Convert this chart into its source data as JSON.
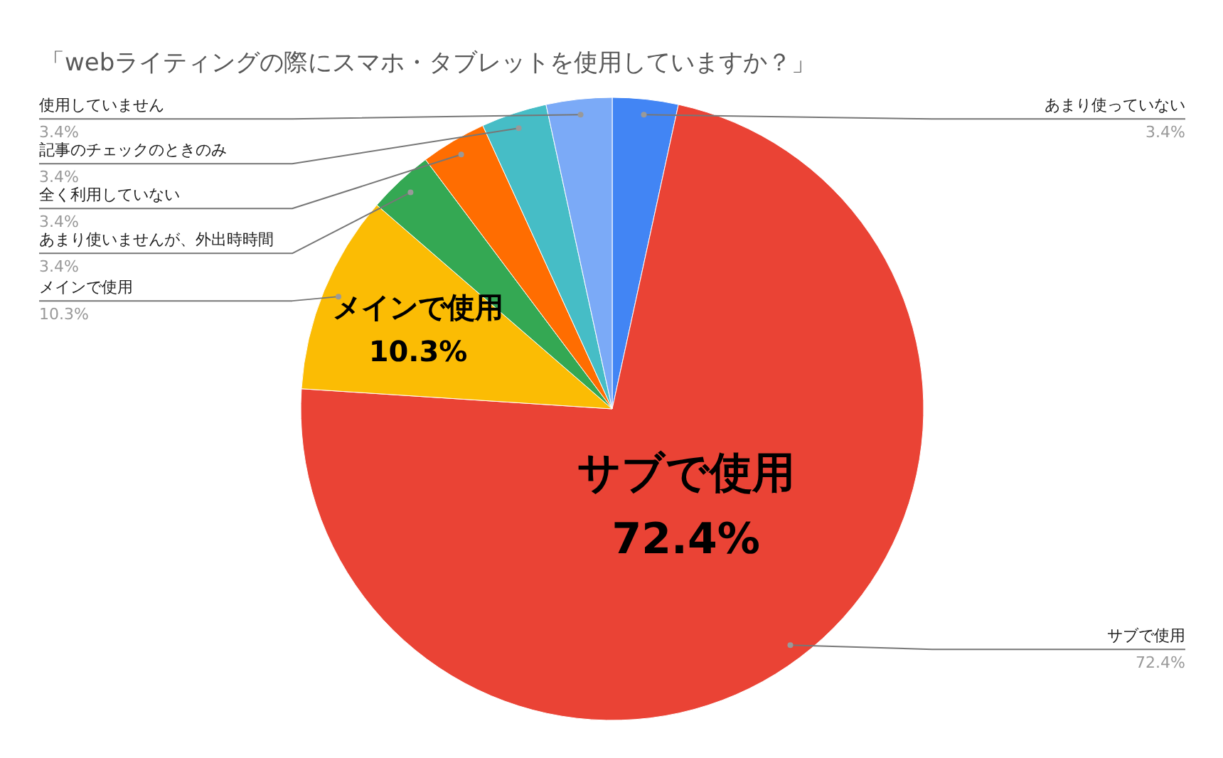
{
  "chart_data": {
    "type": "pie",
    "title": "「webライティングの際にスマホ・タブレットを使用していますか？」",
    "categories": [
      "あまり使っていない",
      "サブで使用",
      "メインで使用",
      "あまり使いませんが、外出時時間",
      "全く利用していない",
      "記事のチェックのときのみ",
      "使用していません"
    ],
    "values": [
      3.4,
      72.4,
      10.3,
      3.4,
      3.4,
      3.4,
      3.4
    ],
    "colors": [
      "#4285f4",
      "#ea4335",
      "#fbbc04",
      "#34a853",
      "#ff6d01",
      "#46bdc6",
      "#7baaf7"
    ],
    "value_labels": [
      "3.4%",
      "72.4%",
      "10.3%",
      "3.4%",
      "3.4%",
      "3.4%",
      "3.4%"
    ]
  }
}
